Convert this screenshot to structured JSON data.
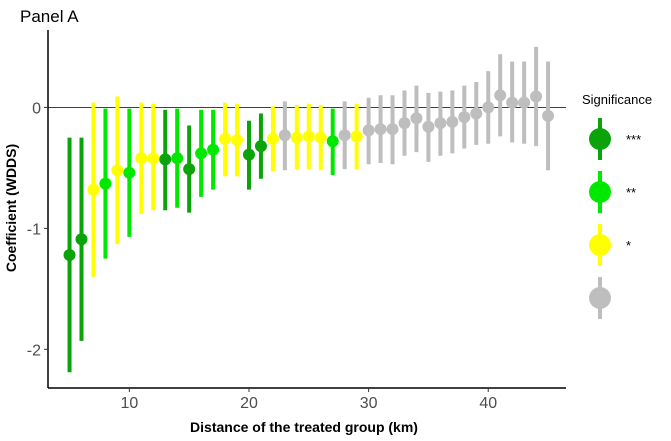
{
  "chart_data": {
    "type": "scatter",
    "panel_title": "Panel A",
    "xlabel": "Distance of the treated group (km)",
    "ylabel": "Coefficient (WDDS)",
    "xlim": [
      3.2,
      46.5
    ],
    "ylim": [
      -2.32,
      0.64
    ],
    "x_ticks": [
      10,
      20,
      30,
      40
    ],
    "y_ticks": [
      0,
      -1,
      -2
    ],
    "reference_line_y": 0,
    "grid": false,
    "legend": {
      "title": "Significance",
      "position": "right",
      "entries": [
        {
          "key": "***",
          "label": "***",
          "color": "#0aa30a"
        },
        {
          "key": "**",
          "label": "**",
          "color": "#00e800"
        },
        {
          "key": "*",
          "label": "*",
          "color": "#ffff00"
        },
        {
          "key": "ns",
          "label": "",
          "color": "#bebebe"
        }
      ]
    },
    "points": [
      {
        "x": 5,
        "y": -1.22,
        "lo": -2.19,
        "hi": -0.25,
        "sig": "***"
      },
      {
        "x": 6,
        "y": -1.09,
        "lo": -1.93,
        "hi": -0.25,
        "sig": "***"
      },
      {
        "x": 7,
        "y": -0.68,
        "lo": -1.4,
        "hi": 0.04,
        "sig": "*"
      },
      {
        "x": 8,
        "y": -0.63,
        "lo": -1.25,
        "hi": -0.01,
        "sig": "**"
      },
      {
        "x": 9,
        "y": -0.52,
        "lo": -1.13,
        "hi": 0.09,
        "sig": "*"
      },
      {
        "x": 10,
        "y": -0.54,
        "lo": -1.07,
        "hi": -0.01,
        "sig": "**"
      },
      {
        "x": 11,
        "y": -0.42,
        "lo": -0.88,
        "hi": 0.04,
        "sig": "*"
      },
      {
        "x": 12,
        "y": -0.42,
        "lo": -0.85,
        "hi": 0.03,
        "sig": "*"
      },
      {
        "x": 13,
        "y": -0.43,
        "lo": -0.85,
        "hi": -0.02,
        "sig": "***"
      },
      {
        "x": 14,
        "y": -0.42,
        "lo": -0.83,
        "hi": -0.01,
        "sig": "**"
      },
      {
        "x": 15,
        "y": -0.51,
        "lo": -0.87,
        "hi": -0.15,
        "sig": "***"
      },
      {
        "x": 16,
        "y": -0.38,
        "lo": -0.74,
        "hi": -0.02,
        "sig": "**"
      },
      {
        "x": 17,
        "y": -0.35,
        "lo": -0.68,
        "hi": -0.02,
        "sig": "**"
      },
      {
        "x": 18,
        "y": -0.26,
        "lo": -0.57,
        "hi": 0.04,
        "sig": "*"
      },
      {
        "x": 19,
        "y": -0.27,
        "lo": -0.57,
        "hi": 0.03,
        "sig": "*"
      },
      {
        "x": 20,
        "y": -0.39,
        "lo": -0.68,
        "hi": -0.11,
        "sig": "***"
      },
      {
        "x": 21,
        "y": -0.32,
        "lo": -0.59,
        "hi": -0.05,
        "sig": "***"
      },
      {
        "x": 22,
        "y": -0.26,
        "lo": -0.53,
        "hi": 0.01,
        "sig": "*"
      },
      {
        "x": 23,
        "y": -0.23,
        "lo": -0.52,
        "hi": 0.05,
        "sig": "ns"
      },
      {
        "x": 24,
        "y": -0.25,
        "lo": -0.51,
        "hi": 0.02,
        "sig": "*"
      },
      {
        "x": 25,
        "y": -0.24,
        "lo": -0.51,
        "hi": 0.03,
        "sig": "*"
      },
      {
        "x": 26,
        "y": -0.25,
        "lo": -0.52,
        "hi": 0.02,
        "sig": "*"
      },
      {
        "x": 27,
        "y": -0.28,
        "lo": -0.56,
        "hi": -0.01,
        "sig": "**"
      },
      {
        "x": 28,
        "y": -0.23,
        "lo": -0.51,
        "hi": 0.05,
        "sig": "ns"
      },
      {
        "x": 29,
        "y": -0.24,
        "lo": -0.51,
        "hi": 0.03,
        "sig": "*"
      },
      {
        "x": 30,
        "y": -0.19,
        "lo": -0.47,
        "hi": 0.08,
        "sig": "ns"
      },
      {
        "x": 31,
        "y": -0.18,
        "lo": -0.46,
        "hi": 0.1,
        "sig": "ns"
      },
      {
        "x": 32,
        "y": -0.18,
        "lo": -0.47,
        "hi": 0.1,
        "sig": "ns"
      },
      {
        "x": 33,
        "y": -0.13,
        "lo": -0.4,
        "hi": 0.14,
        "sig": "ns"
      },
      {
        "x": 34,
        "y": -0.09,
        "lo": -0.37,
        "hi": 0.18,
        "sig": "ns"
      },
      {
        "x": 35,
        "y": -0.16,
        "lo": -0.45,
        "hi": 0.12,
        "sig": "ns"
      },
      {
        "x": 36,
        "y": -0.13,
        "lo": -0.4,
        "hi": 0.13,
        "sig": "ns"
      },
      {
        "x": 37,
        "y": -0.12,
        "lo": -0.38,
        "hi": 0.14,
        "sig": "ns"
      },
      {
        "x": 38,
        "y": -0.08,
        "lo": -0.34,
        "hi": 0.18,
        "sig": "ns"
      },
      {
        "x": 39,
        "y": -0.05,
        "lo": -0.31,
        "hi": 0.21,
        "sig": "ns"
      },
      {
        "x": 40,
        "y": 0.0,
        "lo": -0.3,
        "hi": 0.3,
        "sig": "ns"
      },
      {
        "x": 41,
        "y": 0.1,
        "lo": -0.24,
        "hi": 0.44,
        "sig": "ns"
      },
      {
        "x": 42,
        "y": 0.04,
        "lo": -0.29,
        "hi": 0.38,
        "sig": "ns"
      },
      {
        "x": 43,
        "y": 0.04,
        "lo": -0.3,
        "hi": 0.38,
        "sig": "ns"
      },
      {
        "x": 44,
        "y": 0.09,
        "lo": -0.32,
        "hi": 0.5,
        "sig": "ns"
      },
      {
        "x": 45,
        "y": -0.07,
        "lo": -0.52,
        "hi": 0.38,
        "sig": "ns"
      }
    ]
  }
}
